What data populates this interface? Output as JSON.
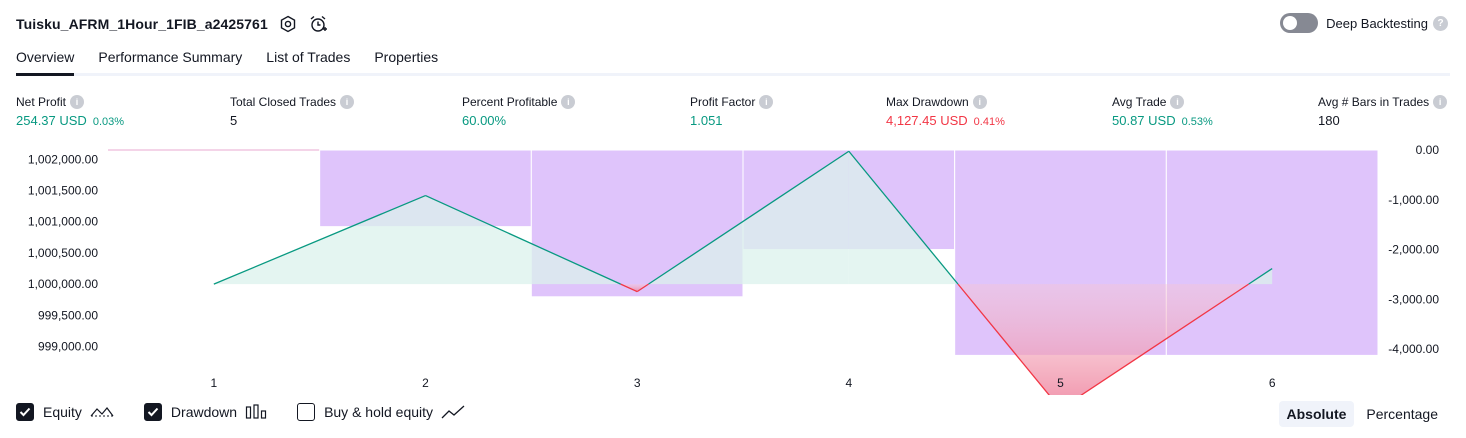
{
  "header": {
    "title": "Tuisku_AFRM_1Hour_1FIB_a2425761",
    "deep_backtesting_label": "Deep Backtesting",
    "deep_backtesting_on": false
  },
  "tabs": [
    {
      "label": "Overview",
      "active": true
    },
    {
      "label": "Performance Summary",
      "active": false
    },
    {
      "label": "List of Trades",
      "active": false
    },
    {
      "label": "Properties",
      "active": false
    }
  ],
  "metrics": {
    "net_profit": {
      "label": "Net Profit",
      "value": "254.37 USD",
      "pct": "0.03%"
    },
    "total_closed_trades": {
      "label": "Total Closed Trades",
      "value": "5"
    },
    "percent_profitable": {
      "label": "Percent Profitable",
      "value": "60.00%"
    },
    "profit_factor": {
      "label": "Profit Factor",
      "value": "1.051"
    },
    "max_drawdown": {
      "label": "Max Drawdown",
      "value": "4,127.45 USD",
      "pct": "0.41%"
    },
    "avg_trade": {
      "label": "Avg Trade",
      "value": "50.87 USD",
      "pct": "0.53%"
    },
    "avg_bars": {
      "label": "Avg # Bars in Trades",
      "value": "180"
    }
  },
  "colors": {
    "positive": "#089981",
    "negative": "#f23645",
    "drawdown_fill": "#dfc4fb",
    "equity_up_fill": "#dbf1ec",
    "equity_down_fill": "#f2a0b0"
  },
  "chart_data": {
    "type": "line",
    "x": [
      1,
      2,
      3,
      4,
      5,
      6
    ],
    "x_ticks": [
      "1",
      "2",
      "3",
      "4",
      "5",
      "6"
    ],
    "series": [
      {
        "name": "Equity",
        "axis": "left",
        "values": [
          1000000,
          1001420,
          999880,
          1002130,
          998000,
          1000250
        ]
      },
      {
        "name": "Drawdown",
        "axis": "right",
        "type": "bar",
        "values": [
          0,
          -1540,
          -2950,
          -2000,
          -4127.45,
          -4127.45
        ]
      }
    ],
    "left_axis": {
      "ticks": [
        "1,002,000.00",
        "1,001,500.00",
        "1,001,000.00",
        "1,000,500.00",
        "1,000,000.00",
        "999,500.00",
        "999,000.00"
      ],
      "ylim": [
        998800,
        1002150
      ]
    },
    "right_axis": {
      "ticks": [
        "0.00",
        "-1,000.00",
        "-2,000.00",
        "-3,000.00",
        "-4,000.00"
      ],
      "ylim": [
        -4200,
        0
      ]
    }
  },
  "legend": {
    "equity": {
      "label": "Equity",
      "checked": true
    },
    "drawdown": {
      "label": "Drawdown",
      "checked": true
    },
    "buy_hold": {
      "label": "Buy & hold equity",
      "checked": false
    }
  },
  "mode": {
    "absolute_label": "Absolute",
    "percentage_label": "Percentage",
    "selected": "Absolute"
  }
}
